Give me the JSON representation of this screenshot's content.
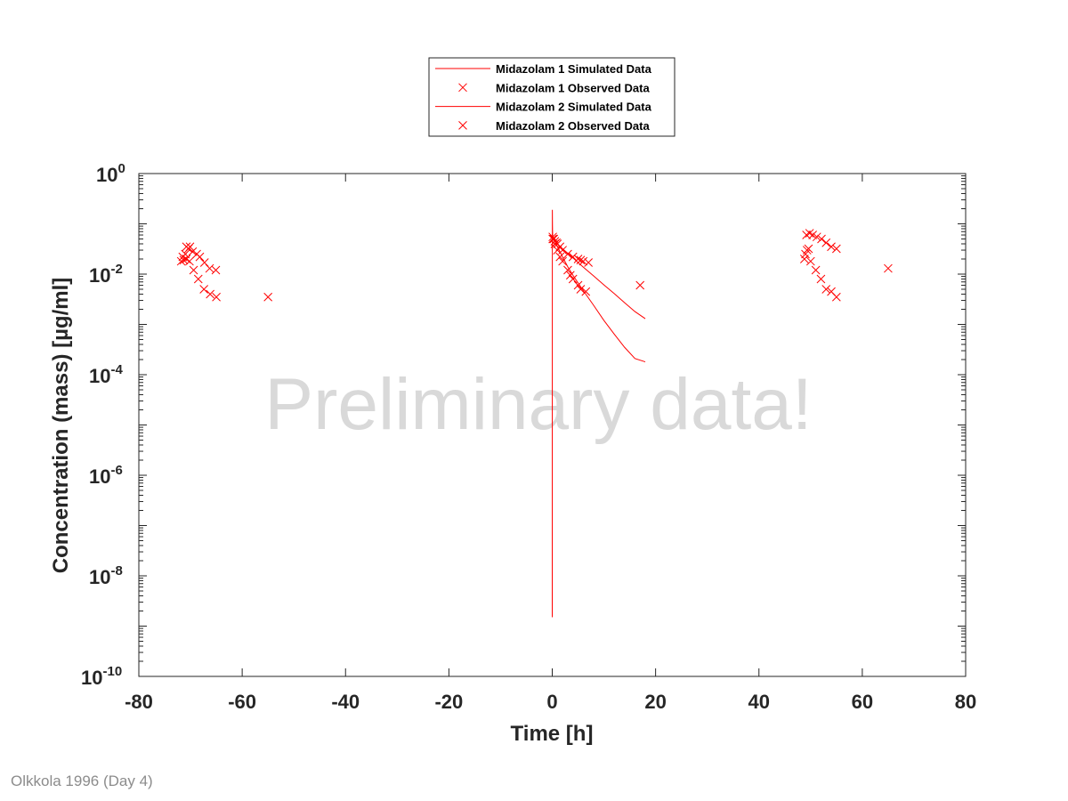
{
  "watermark": "Preliminary data!",
  "footnote": "Olkkola 1996 (Day 4)",
  "colors": {
    "series": "#ff0000",
    "axis": "#262626",
    "watermark": "#d9d9d9",
    "footnote": "#8c8c8c"
  },
  "chart_data": {
    "type": "line",
    "title": "",
    "xlabel": "Time [h]",
    "ylabel": "Concentration (mass) [µg/ml]",
    "xlim": [
      -80,
      80
    ],
    "ylim": [
      1e-10,
      1
    ],
    "yscale": "log",
    "grid": false,
    "legend_position": "top-center",
    "xticks": [
      {
        "value": -80,
        "label": "-80"
      },
      {
        "value": -60,
        "label": "-60"
      },
      {
        "value": -40,
        "label": "-40"
      },
      {
        "value": -20,
        "label": "-20"
      },
      {
        "value": 0,
        "label": "0"
      },
      {
        "value": 20,
        "label": "20"
      },
      {
        "value": 40,
        "label": "40"
      },
      {
        "value": 60,
        "label": "60"
      },
      {
        "value": 80,
        "label": "80"
      }
    ],
    "yticks": [
      {
        "exp": 0,
        "base": "10",
        "sup": "0"
      },
      {
        "exp": -2,
        "base": "10",
        "sup": "-2"
      },
      {
        "exp": -4,
        "base": "10",
        "sup": "-4"
      },
      {
        "exp": -6,
        "base": "10",
        "sup": "-6"
      },
      {
        "exp": -8,
        "base": "10",
        "sup": "-8"
      },
      {
        "exp": -10,
        "base": "10",
        "sup": "-10"
      }
    ],
    "series": [
      {
        "name": "Midazolam 1 Simulated Data",
        "kind": "line",
        "x": [
          0,
          0.02,
          0.04,
          0.06,
          0.08,
          0.1,
          0.15,
          0.3,
          0.5,
          1,
          2,
          3,
          4,
          5,
          6,
          8,
          10,
          12,
          14,
          16,
          18
        ],
        "y": [
          1.5e-09,
          0.19,
          0.1,
          0.07,
          0.062,
          0.058,
          0.055,
          0.05,
          0.046,
          0.04,
          0.032,
          0.026,
          0.021,
          0.017,
          0.0138,
          0.0092,
          0.0061,
          0.0041,
          0.0027,
          0.0018,
          0.0013
        ]
      },
      {
        "name": "Midazolam 1 Observed Data",
        "kind": "marker",
        "x": [
          -71.8,
          -71.3,
          -71,
          -70.8,
          -70.4,
          -70.1,
          -69.6,
          -68.8,
          -68.2,
          -67.3,
          -66.3,
          -65.1,
          0.1,
          0.3,
          0.5,
          0.8,
          1,
          1.5,
          2,
          3,
          4,
          5,
          5.5,
          6,
          7,
          17
        ],
        "y": [
          0.018,
          0.019,
          0.025,
          0.035,
          0.032,
          0.035,
          0.028,
          0.025,
          0.022,
          0.017,
          0.013,
          0.012,
          0.055,
          0.05,
          0.045,
          0.042,
          0.04,
          0.035,
          0.03,
          0.025,
          0.022,
          0.02,
          0.019,
          0.018,
          0.017,
          0.006
        ]
      },
      {
        "name": "Midazolam 2 Simulated Data",
        "kind": "line",
        "x": [
          0,
          0.05,
          0.3,
          1,
          2,
          3,
          4,
          6,
          8,
          10,
          12,
          14,
          16,
          18
        ],
        "y": [
          0.062,
          0.06,
          0.05,
          0.035,
          0.022,
          0.014,
          0.0095,
          0.0047,
          0.0024,
          0.0012,
          0.00064,
          0.00035,
          0.00021,
          0.00018
        ]
      },
      {
        "name": "Midazolam 2 Observed Data",
        "kind": "marker",
        "x": [
          -71.5,
          -70.8,
          -70.2,
          -69.4,
          -68.5,
          -67.4,
          -66.2,
          -65,
          -55,
          0.1,
          0.5,
          1,
          1.5,
          2,
          3,
          3.5,
          4,
          5,
          5.5,
          6.5,
          48.8,
          49,
          49.3,
          49.6,
          50,
          51,
          52,
          53,
          54,
          55,
          65
        ],
        "y": [
          0.022,
          0.02,
          0.018,
          0.012,
          0.008,
          0.005,
          0.004,
          0.0035,
          0.0035,
          0.05,
          0.04,
          0.03,
          0.022,
          0.018,
          0.012,
          0.0095,
          0.008,
          0.006,
          0.005,
          0.0045,
          0.02,
          0.025,
          0.03,
          0.032,
          0.018,
          0.012,
          0.008,
          0.005,
          0.0045,
          0.0035,
          0.013
        ]
      },
      {
        "name": "",
        "kind": "marker",
        "legend": false,
        "x": [
          49.2,
          49.8,
          50.4,
          51.2,
          52.1,
          53,
          54,
          55
        ],
        "y": [
          0.06,
          0.065,
          0.06,
          0.055,
          0.05,
          0.042,
          0.035,
          0.032
        ]
      }
    ]
  }
}
